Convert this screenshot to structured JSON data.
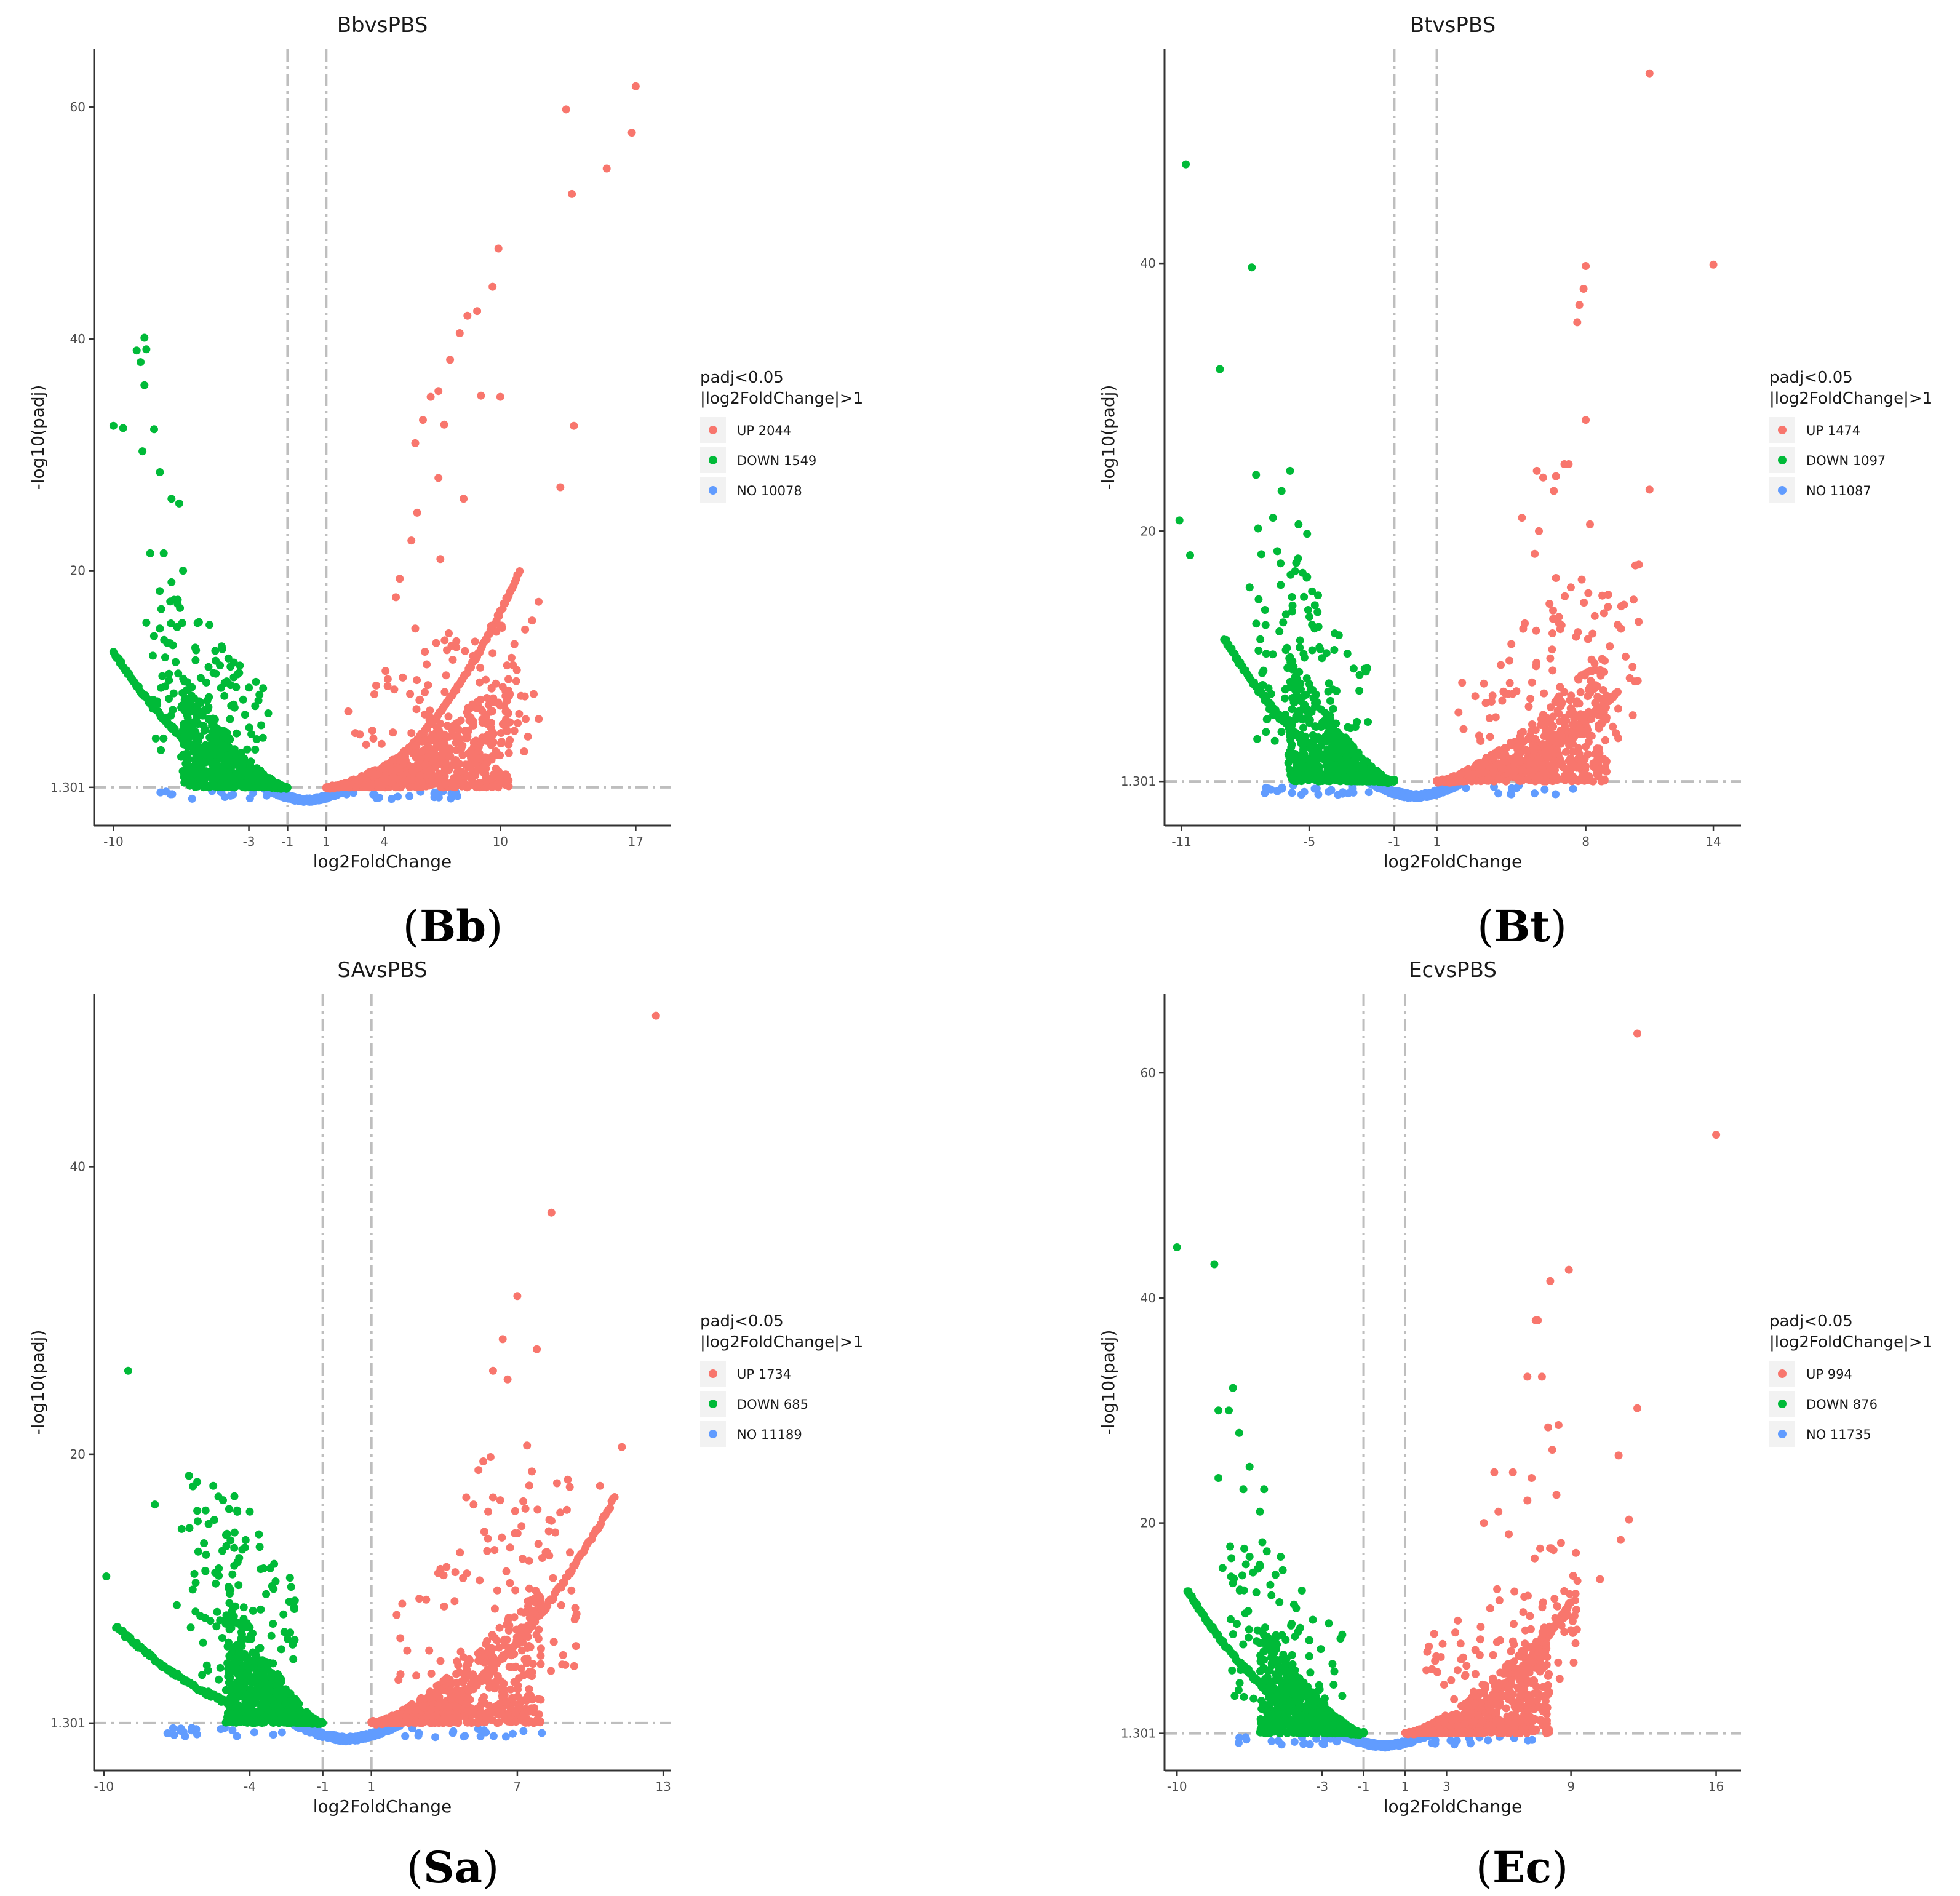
{
  "colors": {
    "up": "#F8766D",
    "down": "#00BA38",
    "no": "#619CFF",
    "guide": "#BEBEBE",
    "axis": "#333333"
  },
  "legend_title": [
    "padj<0.05",
    "|log2FoldChange|>1"
  ],
  "threshold_label": "1.301",
  "xlabel": "log2FoldChange",
  "ylabel": "-log10(padj)",
  "chart_data": [
    {
      "type": "scatter",
      "panel": "Bb",
      "caption": "Bb",
      "title": "BbvsPBS",
      "xlabel": "log2FoldChange",
      "ylabel": "-log10(padj)",
      "xlim": [
        -11.0,
        18.8
      ],
      "ylim": [
        -2.0,
        65.0
      ],
      "xticks": [
        -10,
        -3,
        -1,
        1,
        4,
        10,
        17
      ],
      "yticks": [
        60,
        40,
        20
      ],
      "threshold": 1.301,
      "vlines": [
        -1,
        1
      ],
      "legend": [
        {
          "key": "up",
          "label": "UP 2044"
        },
        {
          "key": "down",
          "label": "DOWN 1549"
        },
        {
          "key": "no",
          "label": "NO 10078"
        }
      ],
      "shape": {
        "left_min": -10,
        "right_max": 11,
        "left_edge_y": 13,
        "right_edge_y": 20,
        "left_upper_lim": -6.5,
        "right_upper_lim": 10.5
      },
      "sparse_points": [
        [
          17,
          61.8
        ],
        [
          16.8,
          57.8
        ],
        [
          15.5,
          54.7
        ],
        [
          13.4,
          59.8
        ],
        [
          13.7,
          52.5
        ],
        [
          9.9,
          47.8
        ],
        [
          9.6,
          44.5
        ],
        [
          8.8,
          42.4
        ],
        [
          8.3,
          42
        ],
        [
          7.9,
          40.5
        ],
        [
          7.4,
          38.2
        ],
        [
          6.8,
          35.5
        ],
        [
          6.4,
          35
        ],
        [
          9.0,
          35.1
        ],
        [
          10.0,
          35
        ],
        [
          6.0,
          33
        ],
        [
          5.6,
          31
        ],
        [
          7.1,
          32.6
        ],
        [
          13.8,
          32.5
        ],
        [
          13.1,
          27.2
        ],
        [
          8.1,
          26.2
        ],
        [
          6.8,
          28
        ],
        [
          5.7,
          25
        ],
        [
          5.4,
          22.6
        ],
        [
          6.9,
          21
        ],
        [
          4.8,
          19.3
        ],
        [
          4.6,
          17.7
        ],
        [
          5.6,
          15
        ],
        [
          6.1,
          13
        ],
        [
          -8.4,
          40.1
        ],
        [
          -8.8,
          39
        ],
        [
          -8.3,
          39.1
        ],
        [
          -8.6,
          38
        ],
        [
          -8.4,
          36
        ],
        [
          -7.9,
          32.2
        ],
        [
          -9.5,
          32.3
        ],
        [
          -10,
          32.5
        ],
        [
          -8.5,
          30.3
        ],
        [
          -7.6,
          28.5
        ],
        [
          -7.0,
          26.2
        ],
        [
          -6.6,
          25.8
        ],
        [
          -8.1,
          21.5
        ],
        [
          -7.4,
          21.5
        ],
        [
          -8.3,
          15.5
        ],
        [
          -7.6,
          15
        ],
        [
          -6.4,
          20
        ],
        [
          -7.0,
          19
        ]
      ]
    },
    {
      "type": "scatter",
      "panel": "Bt",
      "caption": "Bt",
      "title": "BtvsPBS",
      "xlabel": "log2FoldChange",
      "ylabel": "-log10(padj)",
      "xlim": [
        -11.8,
        15.3
      ],
      "ylim": [
        -2.0,
        56.0
      ],
      "xticks": [
        -11,
        -5,
        -1,
        1,
        8,
        14
      ],
      "yticks": [
        40,
        20
      ],
      "threshold": 1.301,
      "vlines": [
        -1,
        1
      ],
      "legend": [
        {
          "key": "up",
          "label": "UP 1474"
        },
        {
          "key": "down",
          "label": "DOWN 1097"
        },
        {
          "key": "no",
          "label": "NO 11087"
        }
      ],
      "shape": {
        "left_min": -9,
        "right_max": 9.5,
        "left_edge_y": 12,
        "right_edge_y": 8,
        "left_upper_lim": -6,
        "right_upper_lim": 9
      },
      "sparse_points": [
        [
          11.0,
          54.2
        ],
        [
          14.0,
          39.9
        ],
        [
          8.0,
          39.8
        ],
        [
          7.9,
          38.1
        ],
        [
          7.7,
          36.9
        ],
        [
          7.6,
          35.6
        ],
        [
          8.0,
          28.3
        ],
        [
          11.0,
          23.1
        ],
        [
          10.5,
          17.5
        ],
        [
          7.2,
          25
        ],
        [
          7.0,
          25
        ],
        [
          6.0,
          24
        ],
        [
          6.6,
          24.1
        ],
        [
          5.7,
          24.5
        ],
        [
          6.5,
          23
        ],
        [
          5.0,
          21
        ],
        [
          5.8,
          20
        ],
        [
          5.6,
          18.3
        ],
        [
          9.8,
          14.5
        ],
        [
          9.5,
          13
        ],
        [
          8.2,
          20.5
        ],
        [
          7.3,
          15.8
        ],
        [
          6.6,
          16.5
        ],
        [
          -10.8,
          47.4
        ],
        [
          -7.7,
          39.7
        ],
        [
          -9.2,
          32.1
        ],
        [
          -11.1,
          20.8
        ],
        [
          -10.6,
          18.2
        ],
        [
          -7.5,
          24.2
        ],
        [
          -5.9,
          24.5
        ],
        [
          -6.3,
          23
        ],
        [
          -6.7,
          21
        ],
        [
          -7.8,
          15.8
        ],
        [
          -5.5,
          20.5
        ],
        [
          -5.1,
          19.8
        ],
        [
          -6.5,
          18.5
        ],
        [
          -7.4,
          20.2
        ],
        [
          -5.8,
          14
        ],
        [
          -6.4,
          12.5
        ]
      ]
    },
    {
      "type": "scatter",
      "panel": "Sa",
      "caption": "Sa",
      "title": "SAvsPBS",
      "xlabel": "log2FoldChange",
      "ylabel": "-log10(padj)",
      "xlim": [
        -10.4,
        13.3
      ],
      "ylim": [
        -2.0,
        52.0
      ],
      "xticks": [
        -10,
        -4,
        -1,
        1,
        7,
        13
      ],
      "yticks": [
        40,
        20
      ],
      "threshold": 1.301,
      "vlines": [
        -1,
        1
      ],
      "legend": [
        {
          "key": "up",
          "label": "UP 1734"
        },
        {
          "key": "down",
          "label": "DOWN 685"
        },
        {
          "key": "no",
          "label": "NO 11189"
        }
      ],
      "shape": {
        "left_min": -9.5,
        "right_max": 11,
        "left_edge_y": 8,
        "right_edge_y": 17,
        "left_upper_lim": -5,
        "right_upper_lim": 8
      },
      "sparse_points": [
        [
          12.7,
          50.5
        ],
        [
          8.4,
          36.8
        ],
        [
          7.0,
          31
        ],
        [
          7.8,
          27.3
        ],
        [
          6.4,
          28
        ],
        [
          6.0,
          25.8
        ],
        [
          6.6,
          25.2
        ],
        [
          11.3,
          20.5
        ],
        [
          7.4,
          20.6
        ],
        [
          5.9,
          19.8
        ],
        [
          7.6,
          18.8
        ],
        [
          5.4,
          18.9
        ],
        [
          5.6,
          19.5
        ],
        [
          6.0,
          17
        ],
        [
          6.3,
          16.8
        ],
        [
          5.8,
          16
        ],
        [
          4.9,
          17
        ],
        [
          5.2,
          16.5
        ],
        [
          10.4,
          17.8
        ],
        [
          6.9,
          14.5
        ],
        [
          6.7,
          13.5
        ],
        [
          -9.0,
          25.8
        ],
        [
          -9.9,
          11.5
        ],
        [
          -7.9,
          16.5
        ],
        [
          -6.5,
          18.5
        ],
        [
          -5.5,
          17.8
        ],
        [
          -5.1,
          16.8
        ],
        [
          -4.0,
          16.0
        ],
        [
          -6.8,
          14.8
        ],
        [
          -7.0,
          9.5
        ],
        [
          -5.8,
          13
        ],
        [
          -5.4,
          11
        ],
        [
          -4.5,
          12.5
        ],
        [
          -4.2,
          13.5
        ]
      ]
    },
    {
      "type": "scatter",
      "panel": "Ec",
      "caption": "Ec",
      "title": "EcvsPBS",
      "xlabel": "log2FoldChange",
      "ylabel": "-log10(padj)",
      "xlim": [
        -10.6,
        17.2
      ],
      "ylim": [
        -2.0,
        67.0
      ],
      "xticks": [
        -10,
        -3,
        -1,
        1,
        3,
        9,
        16
      ],
      "yticks": [
        60,
        40,
        20
      ],
      "threshold": 1.301,
      "vlines": [
        -1,
        1
      ],
      "legend": [
        {
          "key": "up",
          "label": "UP 994"
        },
        {
          "key": "down",
          "label": "DOWN 876"
        },
        {
          "key": "no",
          "label": "NO 11735"
        }
      ],
      "shape": {
        "left_min": -9.5,
        "right_max": 9,
        "left_edge_y": 14,
        "right_edge_y": 13,
        "left_upper_lim": -6,
        "right_upper_lim": 8
      },
      "sparse_points": [
        [
          12.2,
          63.5
        ],
        [
          16.0,
          54.5
        ],
        [
          8.9,
          42.5
        ],
        [
          8.0,
          41.5
        ],
        [
          7.4,
          38
        ],
        [
          7.3,
          38
        ],
        [
          6.9,
          33
        ],
        [
          7.6,
          33
        ],
        [
          12.2,
          30.2
        ],
        [
          8.4,
          28.7
        ],
        [
          7.9,
          28.5
        ],
        [
          11.3,
          26
        ],
        [
          8.1,
          26.5
        ],
        [
          7.1,
          24
        ],
        [
          5.3,
          24.5
        ],
        [
          6.2,
          24.5
        ],
        [
          8.3,
          22.5
        ],
        [
          6.9,
          22
        ],
        [
          11.8,
          20.3
        ],
        [
          11.4,
          18.5
        ],
        [
          10.4,
          15
        ],
        [
          4.8,
          20
        ],
        [
          5.5,
          21
        ],
        [
          6.0,
          19
        ],
        [
          -10.0,
          44.5
        ],
        [
          -8.2,
          43.0
        ],
        [
          -7.3,
          32
        ],
        [
          -7.5,
          30
        ],
        [
          -8.0,
          30
        ],
        [
          -7.0,
          28
        ],
        [
          -6.5,
          25
        ],
        [
          -6.8,
          23
        ],
        [
          -8.0,
          24
        ],
        [
          -5.8,
          23
        ],
        [
          -6.0,
          21
        ],
        [
          -6.5,
          17
        ],
        [
          -7.8,
          16
        ],
        [
          -5.0,
          17
        ],
        [
          -4.9,
          15.8
        ],
        [
          -5.5,
          14.5
        ]
      ]
    }
  ]
}
